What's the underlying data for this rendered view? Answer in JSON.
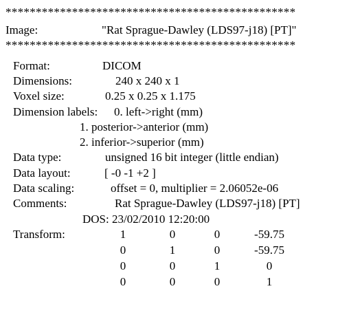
{
  "separator": "************************************************",
  "image_line": {
    "label": "Image:",
    "value": "\"Rat Sprague-Dawley (LDS97-j18) [PT]\""
  },
  "fields": {
    "format": {
      "label": "Format:",
      "value": "DICOM"
    },
    "dimensions": {
      "label": "Dimensions:",
      "value": "240 x 240 x 1"
    },
    "voxel_size": {
      "label": "Voxel size:",
      "value": "0.25 x 0.25 x 1.175"
    },
    "dimension_labels": {
      "label": "Dimension labels:",
      "values": [
        "0. left->right (mm)",
        "1. posterior->anterior (mm)",
        "2. inferior->superior (mm)"
      ]
    },
    "data_type": {
      "label": "Data type:",
      "value": "unsigned 16 bit integer (little endian)"
    },
    "data_layout": {
      "label": "Data layout:",
      "value": "[ -0 -1 +2 ]"
    },
    "data_scaling": {
      "label": "Data scaling:",
      "value": "offset = 0, multiplier = 2.06052e-06"
    },
    "comments": {
      "label": "Comments:",
      "values": [
        "Rat Sprague-Dawley (LDS97-j18) [PT]",
        "DOS: 23/02/2010 12:20:00"
      ]
    },
    "transform": {
      "label": "Transform:",
      "matrix": [
        [
          "1",
          "0",
          "0",
          "-59.75"
        ],
        [
          "0",
          "1",
          "0",
          "-59.75"
        ],
        [
          "0",
          "0",
          "1",
          "0"
        ],
        [
          "0",
          "0",
          "0",
          "1"
        ]
      ]
    }
  }
}
